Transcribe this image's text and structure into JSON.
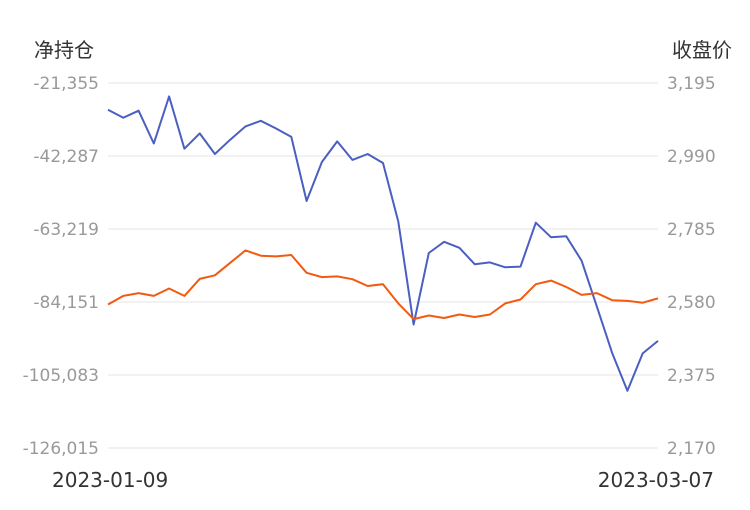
{
  "chart_data": {
    "type": "line",
    "left_axis": {
      "label": "净持仓",
      "ticks": [
        "-21,355",
        "-42,287",
        "-63,219",
        "-84,151",
        "-105,083",
        "-126,015"
      ],
      "range": [
        -126015,
        -21355
      ]
    },
    "right_axis": {
      "label": "收盘价",
      "ticks": [
        "3,195",
        "2,990",
        "2,785",
        "2,580",
        "2,375",
        "2,170"
      ],
      "range": [
        2170,
        3195
      ]
    },
    "x_start_label": "2023-01-09",
    "x_end_label": "2023-03-07",
    "grid": true,
    "colors": {
      "net_position": "#4a5fc1",
      "close_price": "#f25a11",
      "grid": "#e6e6e6",
      "tick_text": "#999999"
    },
    "series": [
      {
        "axis": "left",
        "color": "#4a5fc1",
        "values": [
          -29000,
          -31300,
          -29300,
          -38700,
          -25200,
          -40200,
          -35800,
          -41700,
          -37600,
          -33800,
          -32200,
          -34400,
          -36800,
          -55200,
          -44000,
          -38100,
          -43400,
          -41700,
          -44300,
          -61100,
          -90600,
          -70100,
          -66900,
          -68600,
          -73300,
          -72800,
          -74200,
          -74000,
          -61400,
          -65600,
          -65300,
          -72300,
          -85500,
          -98800,
          -109600,
          -98900,
          -95300
        ]
      },
      {
        "axis": "right",
        "color": "#f25a11",
        "values": [
          2573,
          2597,
          2605,
          2597,
          2618,
          2597,
          2645,
          2655,
          2690,
          2725,
          2710,
          2708,
          2712,
          2662,
          2650,
          2652,
          2644,
          2625,
          2630,
          2576,
          2532,
          2542,
          2535,
          2545,
          2538,
          2545,
          2576,
          2587,
          2630,
          2640,
          2622,
          2600,
          2605,
          2585,
          2583,
          2578,
          2590
        ]
      }
    ]
  }
}
